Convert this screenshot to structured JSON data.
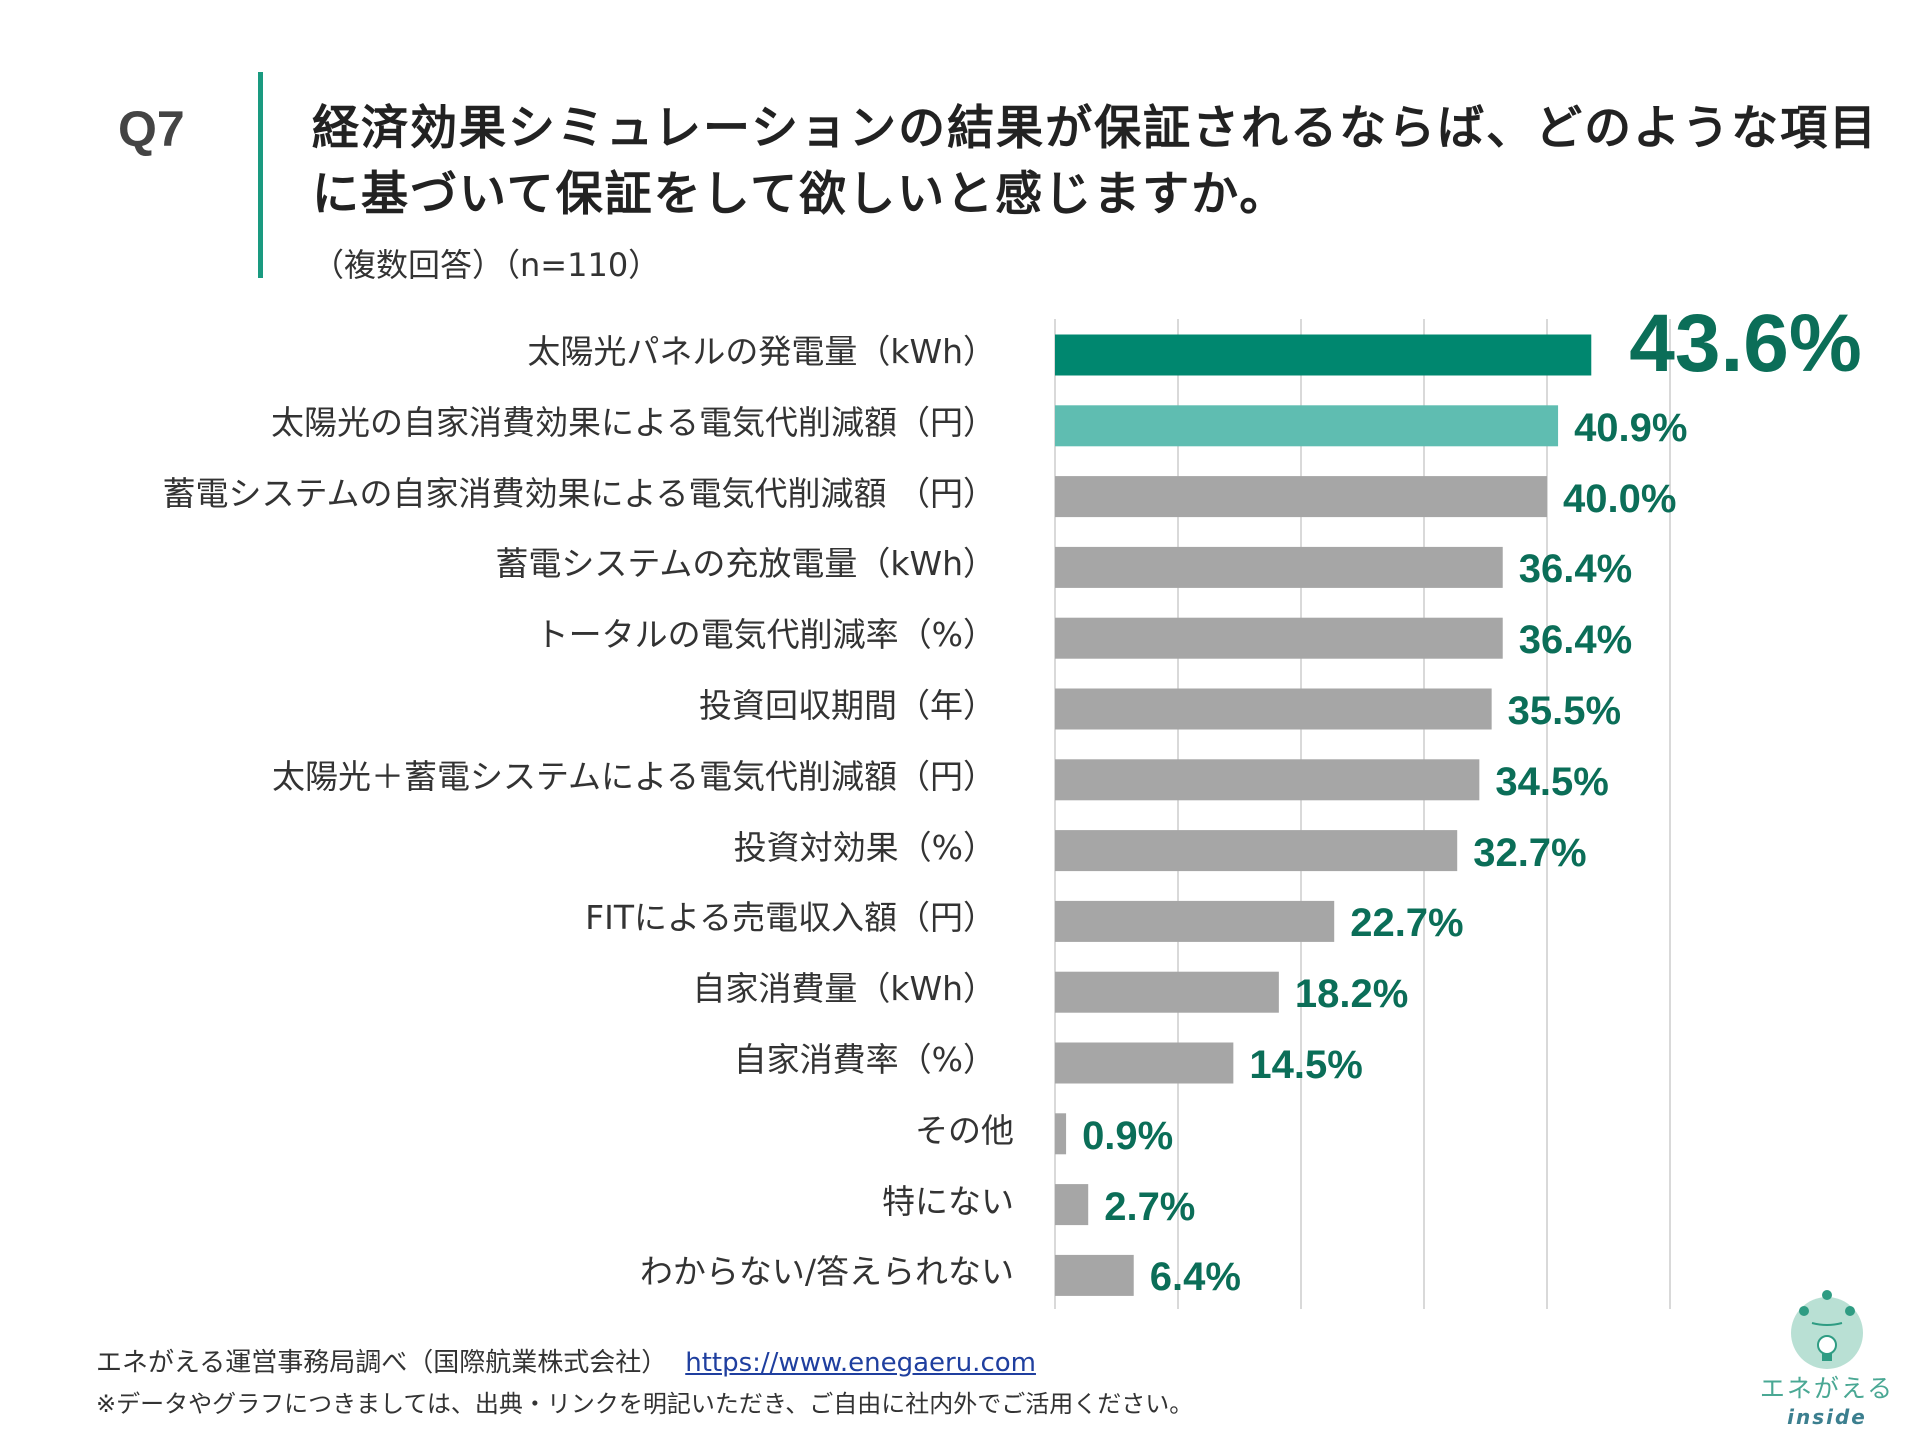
{
  "header": {
    "question": "Q7",
    "title": "経済効果シミュレーションの結果が保証されるならば、どのような項目に基づいて保証をして欲しいと感じますか。",
    "subtitle": "（複数回答）（n=110）"
  },
  "colors": {
    "accent_dark": "#00876f",
    "accent_light": "#5fbdb1",
    "bar_gray": "#a6a6a6",
    "value_text": "#0b6e58",
    "rule": "#1a9a80"
  },
  "chart_data": {
    "type": "bar",
    "orientation": "horizontal",
    "categories": [
      "太陽光パネルの発電量（kWh）",
      "太陽光の自家消費効果による電気代削減額（円）",
      "蓄電システムの自家消費効果による電気代削減額 （円）",
      "蓄電システムの充放電量（kWh）",
      "トータルの電気代削減率（%）",
      "投資回収期間（年）",
      "太陽光＋蓄電システムによる電気代削減額（円）",
      "投資対効果（%）",
      "FITによる売電収入額（円）",
      "自家消費量（kWh）",
      "自家消費率（%）",
      "その他",
      "特にない",
      "わからない/答えられない"
    ],
    "values": [
      43.6,
      40.9,
      40.0,
      36.4,
      36.4,
      35.5,
      34.5,
      32.7,
      22.7,
      18.2,
      14.5,
      0.9,
      2.7,
      6.4
    ],
    "value_labels": [
      "43.6%",
      "40.9%",
      "40.0%",
      "36.4%",
      "36.4%",
      "35.5%",
      "34.5%",
      "32.7%",
      "22.7%",
      "18.2%",
      "14.5%",
      "0.9%",
      "2.7%",
      "6.4%"
    ],
    "unit": "%",
    "xlim": [
      0,
      50
    ],
    "grid": true,
    "highlight": {
      "0": "accent_dark",
      "1": "accent_light"
    }
  },
  "footer": {
    "source": "エネがえる運営事務局調べ（国際航業株式会社）",
    "link": "https://www.enegaeru.com",
    "note": "※データやグラフにつきましては、出典・リンクを明記いただき、ご自由に社内外でご活用ください。"
  },
  "logo": {
    "name": "エネがえる",
    "tag": "inside"
  }
}
